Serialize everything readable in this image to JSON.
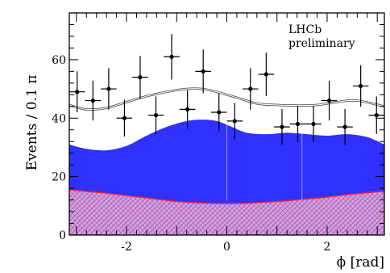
{
  "chart_data": {
    "type": "scatter",
    "xlabel": "ϕ [rad]",
    "ylabel": "Events / 0.1 π",
    "xlim": [
      -3.1416,
      3.1416
    ],
    "ylim": [
      0,
      76
    ],
    "x_ticks": [
      -2,
      0,
      2
    ],
    "x_tick_labels": [
      "-2",
      "0",
      "2"
    ],
    "y_ticks": [
      0,
      20,
      40,
      60
    ],
    "y_tick_labels": [
      "0",
      "20",
      "40",
      "60"
    ],
    "annotations": [
      "LHCb",
      "preliminary"
    ],
    "grid": false,
    "data_points": {
      "x": [
        -2.985,
        -2.67,
        -2.356,
        -2.042,
        -1.728,
        -1.414,
        -1.1,
        -0.785,
        -0.471,
        -0.157,
        0.157,
        0.471,
        0.785,
        1.1,
        1.414,
        1.728,
        2.042,
        2.356,
        2.67,
        2.985
      ],
      "y": [
        49,
        46,
        50,
        40,
        54,
        41,
        61,
        43,
        56,
        42,
        39,
        50,
        55,
        37,
        38,
        38,
        46,
        37,
        51,
        41
      ],
      "yerr": [
        7.0,
        6.8,
        7.1,
        6.3,
        7.3,
        6.4,
        7.8,
        6.6,
        7.5,
        6.5,
        6.2,
        7.1,
        7.4,
        6.1,
        6.2,
        6.2,
        6.8,
        6.1,
        7.1,
        6.4
      ],
      "xerr": 0.157,
      "color": "#000000"
    },
    "total_fit": {
      "x": [
        -3.1416,
        -2.8,
        -2.4,
        -2.0,
        -1.6,
        -1.2,
        -0.8,
        -0.5,
        -0.2,
        0.2,
        0.6,
        1.0,
        1.4,
        1.8,
        2.2,
        2.6,
        3.1416
      ],
      "y": [
        44.5,
        43.0,
        43.5,
        45.5,
        47.5,
        49.0,
        50.0,
        50.0,
        49.0,
        47.0,
        45.0,
        44.5,
        44.3,
        44.5,
        45.5,
        46.0,
        44.0
      ],
      "color": "#404040"
    },
    "signal_component": {
      "x": [
        -3.1416,
        -2.8,
        -2.4,
        -2.0,
        -1.6,
        -1.2,
        -0.8,
        -0.5,
        -0.2,
        0.1,
        0.4,
        0.8,
        1.2,
        1.6,
        2.0,
        2.4,
        2.8,
        3.1416
      ],
      "y": [
        31,
        29.5,
        29.0,
        30.5,
        34.0,
        37.0,
        39.0,
        39.5,
        39.0,
        37.0,
        35.0,
        34.5,
        35.0,
        34.5,
        34.0,
        34.5,
        33.5,
        31
      ],
      "color": "#3030ff"
    },
    "background_component": {
      "x": [
        -3.1416,
        -2.5,
        -2.0,
        -1.5,
        -1.0,
        -0.5,
        0,
        0.5,
        1.0,
        1.5,
        2.0,
        2.5,
        3.1416
      ],
      "y": [
        15.5,
        14.5,
        13.5,
        12.5,
        11.5,
        11.0,
        10.8,
        11.0,
        11.5,
        12.2,
        13.0,
        14.0,
        15.0
      ],
      "color": "#e8203c",
      "hatch_color": "#d86a8c"
    }
  }
}
